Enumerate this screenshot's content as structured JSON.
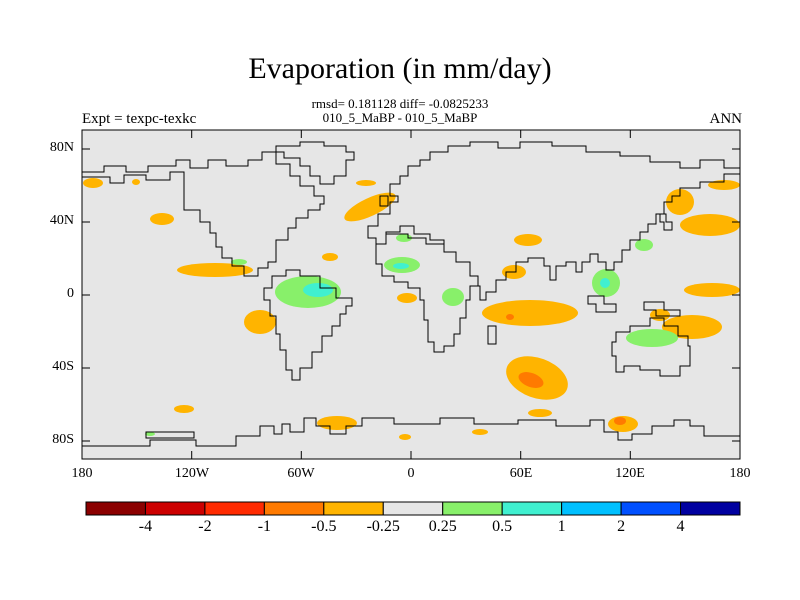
{
  "title": "Evaporation (in mm/day)",
  "subtitle_line1": "rmsd= 0.181128 diff= -0.0825233",
  "subtitle_line2": "010_5_MaBP - 010_5_MaBP",
  "left_label": "Expt = texpc-texkc",
  "right_label": "ANN",
  "colors": {
    "background": "#e6e6e6",
    "coast": "#000000",
    "neg_small": "#ffb400",
    "neg_mid": "#ff7a00",
    "pos_small": "#88f06a",
    "pos_mid": "#40f0d0"
  },
  "chart_data": {
    "type": "map",
    "projection": "cylindrical-equidistant",
    "lon_range": [
      -180,
      180
    ],
    "lat_range": [
      -90,
      90
    ],
    "y_ticks": [
      {
        "value": 80,
        "label": "80N"
      },
      {
        "value": 40,
        "label": "40N"
      },
      {
        "value": 0,
        "label": "0"
      },
      {
        "value": -40,
        "label": "40S"
      },
      {
        "value": -80,
        "label": "80S"
      }
    ],
    "x_ticks": [
      {
        "value": -180,
        "label": "180"
      },
      {
        "value": -120,
        "label": "120W"
      },
      {
        "value": -60,
        "label": "60W"
      },
      {
        "value": 0,
        "label": "0"
      },
      {
        "value": 60,
        "label": "60E"
      },
      {
        "value": 120,
        "label": "120E"
      },
      {
        "value": 180,
        "label": "180"
      }
    ],
    "colorbar": {
      "colors": [
        "#8b0000",
        "#cc0000",
        "#ff2a00",
        "#ff7a00",
        "#ffb400",
        "#e6e6e6",
        "#88f06a",
        "#40f0d0",
        "#00c0ff",
        "#0050ff",
        "#0000a0"
      ],
      "labels": [
        "-4",
        "-2",
        "-1",
        "-0.5",
        "-0.25",
        "0.25",
        "0.5",
        "1",
        "2",
        "4"
      ]
    }
  }
}
